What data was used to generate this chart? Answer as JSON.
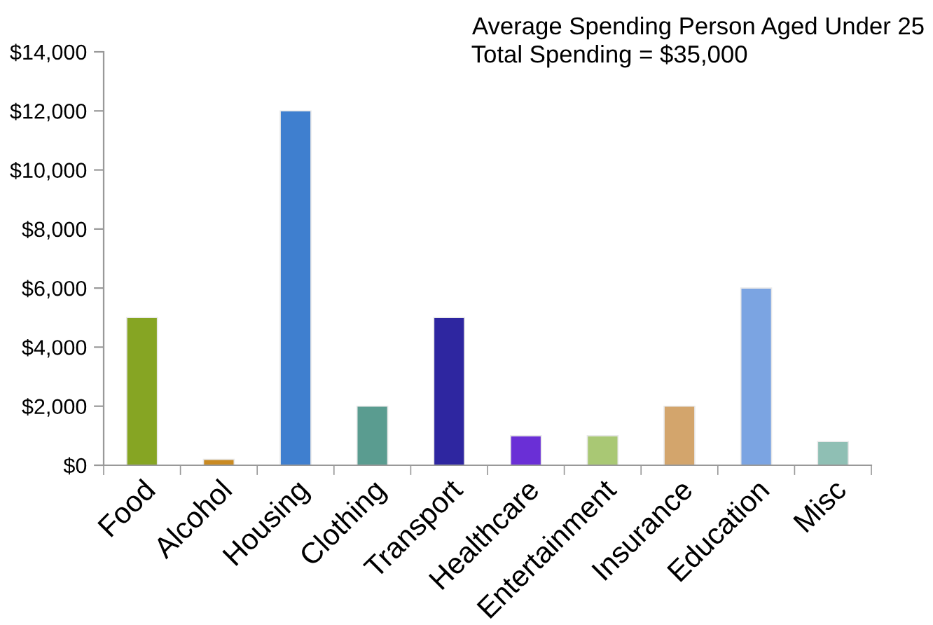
{
  "chart_data": {
    "type": "bar",
    "title": "Average Spending Person Aged Under 25",
    "subtitle": "Total Spending = $35,000",
    "categories": [
      "Food",
      "Alcohol",
      "Housing",
      "Clothing",
      "Transport",
      "Healthcare",
      "Entertainment",
      "Insurance",
      "Education",
      "Misc"
    ],
    "values": [
      5000,
      200,
      12000,
      2000,
      5000,
      1000,
      1000,
      2000,
      6000,
      800
    ],
    "colors": [
      "#86a523",
      "#c98a22",
      "#3f7fcf",
      "#5a9c90",
      "#2e26a0",
      "#6a2fd6",
      "#a9c874",
      "#d3a56c",
      "#7ba4e2",
      "#8fbfb4"
    ],
    "ylim": [
      0,
      14000
    ],
    "yticks": [
      {
        "value": 0,
        "label": "$0"
      },
      {
        "value": 2000,
        "label": "$2,000"
      },
      {
        "value": 4000,
        "label": "$4,000"
      },
      {
        "value": 6000,
        "label": "$6,000"
      },
      {
        "value": 8000,
        "label": "$8,000"
      },
      {
        "value": 10000,
        "label": "$10,000"
      },
      {
        "value": 12000,
        "label": "$12,000"
      },
      {
        "value": 14000,
        "label": "$14,000"
      }
    ],
    "grid": false
  }
}
